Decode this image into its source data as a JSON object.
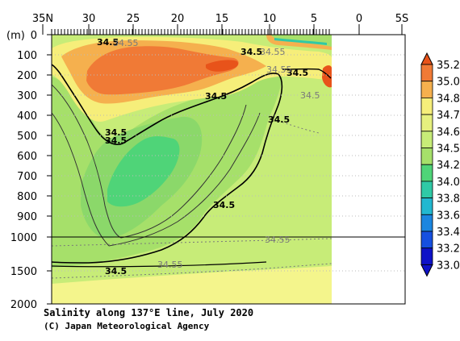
{
  "chart_data": {
    "type": "heatmap",
    "title": "Salinity along 137°E line, July 2020",
    "credit": "(C) Japan Meteorological Agency",
    "yunit": "(m)",
    "x_ticks": [
      "35N",
      "30",
      "25",
      "20",
      "15",
      "10",
      "5",
      "0",
      "5S"
    ],
    "x_range": [
      "35N",
      "5S"
    ],
    "y_ticks_upper": [
      "0",
      "100",
      "200",
      "300",
      "400",
      "500",
      "600",
      "700",
      "800",
      "900",
      "1000"
    ],
    "y_ticks_lower": [
      "1500",
      "2000"
    ],
    "ylim": [
      0,
      2000
    ],
    "y_axis_break": 1000,
    "legend_levels": [
      "35.2",
      "35.0",
      "34.8",
      "34.7",
      "34.6",
      "34.5",
      "34.2",
      "34.0",
      "33.8",
      "33.6",
      "33.4",
      "33.2",
      "33.0"
    ],
    "contour_labels": [
      {
        "text": "34.5",
        "style": "solid"
      },
      {
        "text": "34.5",
        "style": "solid"
      },
      {
        "text": "34.5",
        "style": "solid"
      },
      {
        "text": "34.5",
        "style": "solid"
      },
      {
        "text": "34.5",
        "style": "solid"
      },
      {
        "text": "34.5",
        "style": "solid"
      },
      {
        "text": "34.55",
        "style": "dotted"
      },
      {
        "text": "34.55",
        "style": "dotted"
      },
      {
        "text": "34.55",
        "style": "dotted"
      },
      {
        "text": "34.55",
        "style": "dotted"
      },
      {
        "text": "34.55",
        "style": "dotted"
      },
      {
        "text": "34.5",
        "style": "dotted"
      }
    ],
    "colors": {
      "c352": "#e8531a",
      "c350": "#f07a36",
      "c348": "#f5b04e",
      "c347": "#f6ee7a",
      "c346": "#e6f07e",
      "c345": "#c7ec78",
      "c342": "#a6e06a",
      "c340": "#4fd478",
      "c338": "#2fc9a6",
      "c336": "#22b8d0",
      "c334": "#1b86e0",
      "c332": "#1650e0",
      "c330": "#0e12c8",
      "deep": "#f4f58c",
      "nodata": "#ffffff"
    }
  }
}
